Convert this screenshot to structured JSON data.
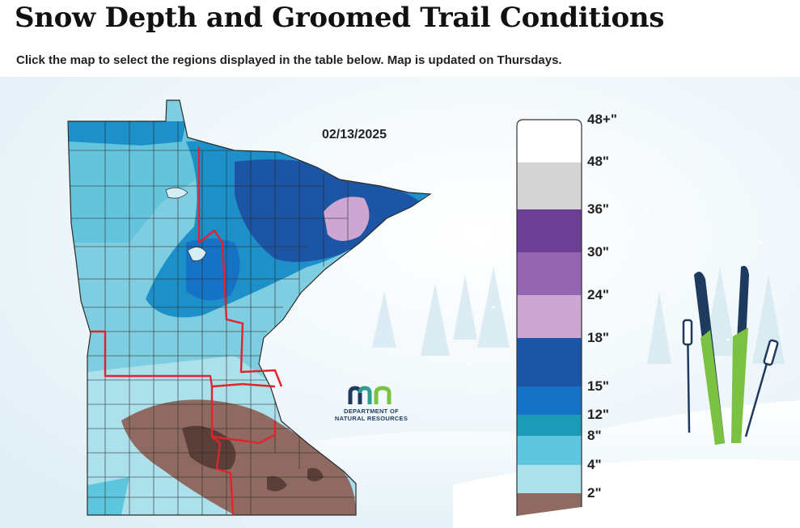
{
  "header": {
    "title": "Snow Depth and Groomed Trail Conditions",
    "subtitle": "Click the map to select the regions displayed in the table below. Map is updated on Thursdays."
  },
  "map": {
    "date": "02/13/2025",
    "region_boundary_color": "#e0242b",
    "county_line_color": "#2b2b2b"
  },
  "logo": {
    "mark": "mn",
    "line1": "DEPARTMENT OF",
    "line2": "NATURAL RESOURCES",
    "mark_colors": [
      "#1e3a5f",
      "#2d9e8f",
      "#7cc242"
    ]
  },
  "legend": {
    "labels": [
      "48+\"",
      "48\"",
      "36\"",
      "30\"",
      "24\"",
      "18\"",
      "15\"",
      "12\"",
      "8\"",
      "4\"",
      "2\""
    ],
    "colors": {
      "48plus": "#ffffff",
      "36_48": "#d4d4d4",
      "30_36": "#6b3f96",
      "24_30": "#9466b0",
      "18_24": "#cda6d2",
      "15_18": "#1c55a5",
      "12_15": "#1572c4",
      "8_12": "#1d9ab8",
      "4_8": "#5ec6dd",
      "2_4": "#ace1ec",
      "0_2": "#8f6a62"
    }
  },
  "decor": {
    "icons": [
      "skis-icon",
      "ski-poles-icon",
      "snow-trees-icon"
    ]
  }
}
